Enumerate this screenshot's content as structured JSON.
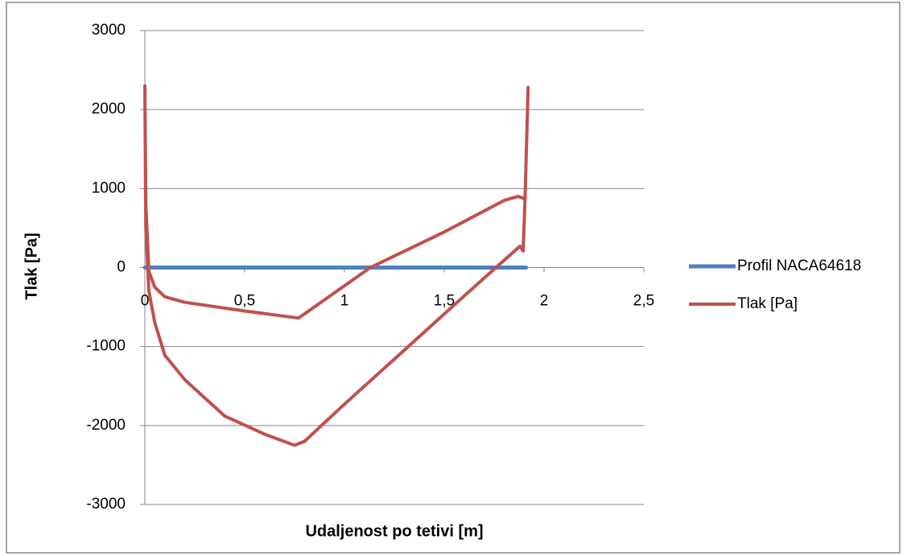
{
  "chart_data": {
    "type": "scatter-line",
    "x_label": "Udaljenost po tetivi [m]",
    "y_label": "Tlak [Pa]",
    "xlim": [
      0,
      2.5
    ],
    "xticks": [
      0,
      {
        "value": 0.5,
        "label": "0,5"
      },
      1,
      {
        "value": 1.5,
        "label": "1,5"
      },
      2,
      {
        "value": 2.5,
        "label": "2,5"
      }
    ],
    "ylim": [
      -3000,
      3000
    ],
    "yticks": [
      -3000,
      -2000,
      -1000,
      0,
      1000,
      2000,
      3000
    ],
    "grid": true,
    "legend": "right",
    "series": [
      {
        "name": "Profil NACA64618",
        "color": "#4f81bd",
        "x": [
          0,
          1.91
        ],
        "values": [
          0,
          0
        ]
      },
      {
        "name": "Tlak [Pa]",
        "color": "#c0504d",
        "x": [
          1.92,
          1.905,
          1.87,
          1.8,
          1.5,
          1.13,
          0.77,
          0.5,
          0.2,
          0.1,
          0.05,
          0.02,
          0.005,
          0,
          0.005,
          0.02,
          0.05,
          0.1,
          0.2,
          0.4,
          0.6,
          0.75,
          0.8,
          1.0,
          1.3,
          1.6,
          1.75,
          1.87,
          1.88,
          1.895,
          1.905
        ],
        "values": [
          2280,
          870,
          900,
          850,
          450,
          0,
          -640,
          -550,
          -440,
          -370,
          -250,
          -50,
          800,
          2300,
          500,
          -300,
          -700,
          -1110,
          -1420,
          -1880,
          -2110,
          -2250,
          -2200,
          -1730,
          -1045,
          -360,
          -20,
          250,
          270,
          210,
          870
        ]
      }
    ]
  }
}
